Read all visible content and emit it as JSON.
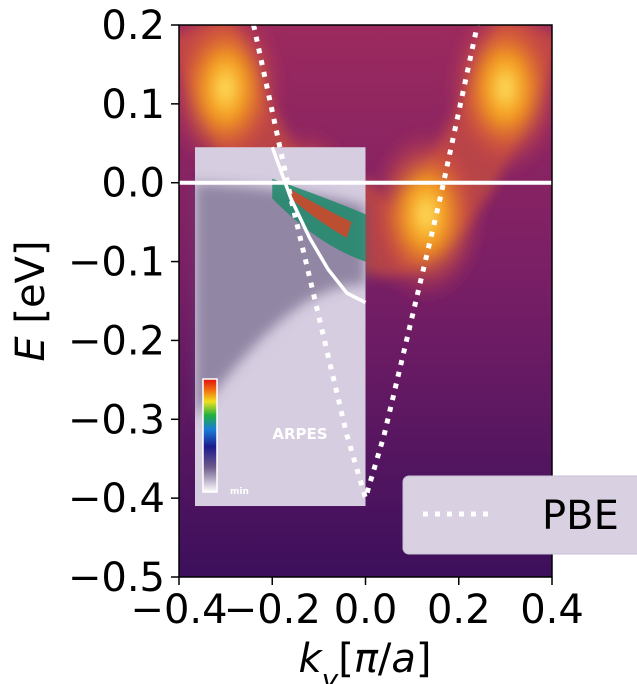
{
  "chart_data": {
    "type": "heatmap",
    "title": "",
    "xlabel": "k_y[π/a]",
    "ylabel": "E [eV]",
    "xlim": [
      -0.4,
      0.4
    ],
    "ylim": [
      -0.5,
      0.2
    ],
    "x_ticks": [
      "−0.4",
      "−0.2",
      "0.0",
      "0.2",
      "0.4"
    ],
    "y_ticks": [
      "0.2",
      "0.1",
      "0.0",
      "−0.1",
      "−0.2",
      "−0.3",
      "−0.4",
      "−0.5"
    ],
    "colormap": "inferno",
    "fermi_level": {
      "y": 0.0,
      "color": "#ffffff"
    },
    "intensity_maxima": [
      {
        "x": -0.3,
        "y": 0.12
      },
      {
        "x": 0.3,
        "y": 0.12
      },
      {
        "x": -0.13,
        "y": -0.04
      },
      {
        "x": 0.13,
        "y": -0.04
      }
    ],
    "series": [
      {
        "name": "PBE",
        "style": "dotted",
        "color": "#ffffff",
        "points": [
          {
            "x": -0.24,
            "y": 0.2
          },
          {
            "x": -0.2,
            "y": 0.09
          },
          {
            "x": -0.16,
            "y": -0.02
          },
          {
            "x": -0.12,
            "y": -0.12
          },
          {
            "x": -0.08,
            "y": -0.22
          },
          {
            "x": -0.04,
            "y": -0.32
          },
          {
            "x": 0.0,
            "y": -0.4
          },
          {
            "x": 0.04,
            "y": -0.32
          },
          {
            "x": 0.08,
            "y": -0.22
          },
          {
            "x": 0.12,
            "y": -0.12
          },
          {
            "x": 0.16,
            "y": -0.02
          },
          {
            "x": 0.2,
            "y": 0.09
          },
          {
            "x": 0.24,
            "y": 0.2
          }
        ]
      },
      {
        "style": "solid",
        "color": "#ffffff",
        "points": [
          {
            "x": -0.2,
            "y": 0.045
          },
          {
            "x": -0.16,
            "y": -0.02
          },
          {
            "x": -0.12,
            "y": -0.07
          },
          {
            "x": -0.08,
            "y": -0.11
          },
          {
            "x": -0.04,
            "y": -0.14
          },
          {
            "x": 0.0,
            "y": -0.152
          }
        ]
      }
    ],
    "inset": {
      "label": "ARPES",
      "colorbar_min_label": "min",
      "x_range": [
        -0.4,
        0.0
      ],
      "y_range": [
        -0.41,
        0.045
      ]
    },
    "legend": {
      "placement": "lower-right",
      "entries": [
        "PBE"
      ]
    }
  }
}
